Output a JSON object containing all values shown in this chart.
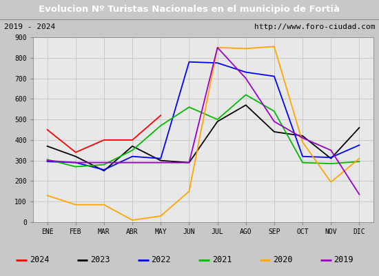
{
  "title": "Evolucion Nº Turistas Nacionales en el municipio de Fortià",
  "subtitle_left": "2019 - 2024",
  "subtitle_right": "http://www.foro-ciudad.com",
  "title_bg_color": "#4d7cc7",
  "title_text_color": "#ffffff",
  "months": [
    "ENE",
    "FEB",
    "MAR",
    "ABR",
    "MAY",
    "JUN",
    "JUL",
    "AGO",
    "SEP",
    "OCT",
    "NOV",
    "DIC"
  ],
  "ylim": [
    0,
    900
  ],
  "yticks": [
    0,
    100,
    200,
    300,
    400,
    500,
    600,
    700,
    800,
    900
  ],
  "series": {
    "2024": {
      "color": "#ff0000",
      "data": [
        450,
        340,
        400,
        400,
        520,
        null,
        null,
        null,
        null,
        null,
        null,
        null
      ]
    },
    "2023": {
      "color": "#000000",
      "data": [
        370,
        320,
        250,
        370,
        300,
        290,
        490,
        570,
        440,
        420,
        310,
        460
      ]
    },
    "2022": {
      "color": "#0000ff",
      "data": [
        295,
        290,
        255,
        320,
        310,
        780,
        775,
        730,
        710,
        320,
        315,
        375
      ]
    },
    "2021": {
      "color": "#00bb00",
      "data": [
        305,
        270,
        280,
        350,
        470,
        560,
        500,
        620,
        540,
        290,
        285,
        295
      ]
    },
    "2020": {
      "color": "#ffa500",
      "data": [
        130,
        85,
        85,
        10,
        30,
        150,
        850,
        845,
        855,
        390,
        195,
        310
      ]
    },
    "2019": {
      "color": "#9900cc",
      "data": [
        300,
        290,
        290,
        290,
        290,
        290,
        850,
        700,
        490,
        410,
        350,
        135
      ]
    }
  },
  "legend_order": [
    "2024",
    "2023",
    "2022",
    "2021",
    "2020",
    "2019"
  ],
  "outer_bg_color": "#c8c8c8",
  "plot_bg_color": "#e8e8e8",
  "subtitle_bg_color": "#e8e8e8"
}
